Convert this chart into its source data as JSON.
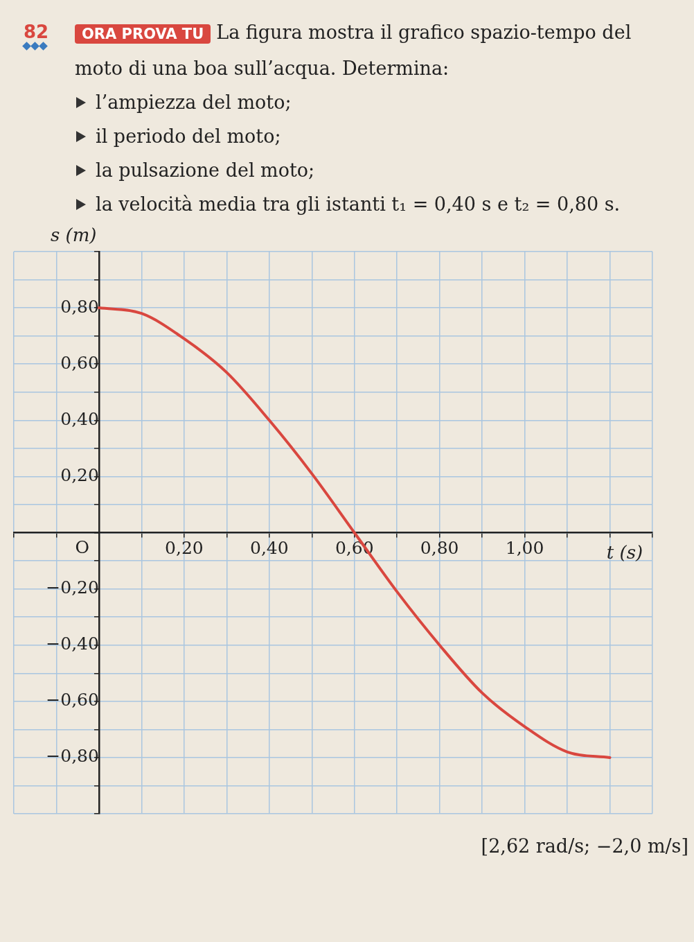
{
  "chart_data": {
    "type": "line",
    "title": "La figura mostra il grafico spazio-tempo del moto di una boa sull’acqua. Determina:",
    "annotations": [
      "82",
      "ORA PROVA TU",
      "O",
      "[2,62 rad/s; −2,0 m/s]",
      "l’ampiezza del moto;",
      "il periodo del moto;",
      "la pulsazione del moto;",
      "la velocità media tra gli istanti t₁ = 0,40 s e t₂ = 0,80 s."
    ],
    "xlabel": "t (s)",
    "ylabel": "s (m)",
    "x": [
      0,
      0.1,
      0.2,
      0.3,
      0.4,
      0.5,
      0.6,
      0.7,
      0.8,
      0.9,
      1.0,
      1.1,
      1.2
    ],
    "series": [
      {
        "color": "#d9473f",
        "values": [
          0.8,
          0.78,
          0.69,
          0.57,
          0.4,
          0.21,
          0,
          -0.21,
          -0.4,
          -0.57,
          -0.69,
          -0.78,
          -0.8
        ]
      }
    ],
    "xlim": [
      -0.2,
      1.3
    ],
    "ylim": [
      -1.0,
      1.0
    ],
    "xticks": [
      {
        "value": -0.2,
        "label": null
      },
      {
        "value": -0.1,
        "label": null
      },
      {
        "value": 0,
        "label": null
      },
      {
        "value": 0.1,
        "label": null
      },
      {
        "value": 0.2,
        "label": "0,20"
      },
      {
        "value": 0.3,
        "label": null
      },
      {
        "value": 0.4,
        "label": "0,40"
      },
      {
        "value": 0.5,
        "label": null
      },
      {
        "value": 0.6,
        "label": "0,60"
      },
      {
        "value": 0.7,
        "label": null
      },
      {
        "value": 0.8,
        "label": "0,80"
      },
      {
        "value": 0.9,
        "label": null
      },
      {
        "value": 1.0,
        "label": "1,00"
      },
      {
        "value": 1.1,
        "label": null
      },
      {
        "value": 1.2,
        "label": null
      },
      {
        "value": 1.3,
        "label": null
      }
    ],
    "yticks": [
      {
        "value": -1.0,
        "label": null
      },
      {
        "value": -0.9,
        "label": null
      },
      {
        "value": -0.8,
        "label": "−0,80"
      },
      {
        "value": -0.7,
        "label": null
      },
      {
        "value": -0.6,
        "label": "−0,60"
      },
      {
        "value": -0.5,
        "label": null
      },
      {
        "value": -0.4,
        "label": "−0,40"
      },
      {
        "value": -0.3,
        "label": null
      },
      {
        "value": -0.2,
        "label": "−0,20"
      },
      {
        "value": -0.1,
        "label": null
      },
      {
        "value": 0,
        "label": null
      },
      {
        "value": 0.1,
        "label": null
      },
      {
        "value": 0.2,
        "label": "0,20"
      },
      {
        "value": 0.3,
        "label": null
      },
      {
        "value": 0.4,
        "label": "0,40"
      },
      {
        "value": 0.5,
        "label": null
      },
      {
        "value": 0.6,
        "label": "0,60"
      },
      {
        "value": 0.7,
        "label": null
      },
      {
        "value": 0.8,
        "label": "0,80"
      },
      {
        "value": 0.9,
        "label": null
      },
      {
        "value": 1.0,
        "label": null
      }
    ],
    "grid": true,
    "legend": false,
    "marker": "none",
    "line_style": "solid"
  }
}
